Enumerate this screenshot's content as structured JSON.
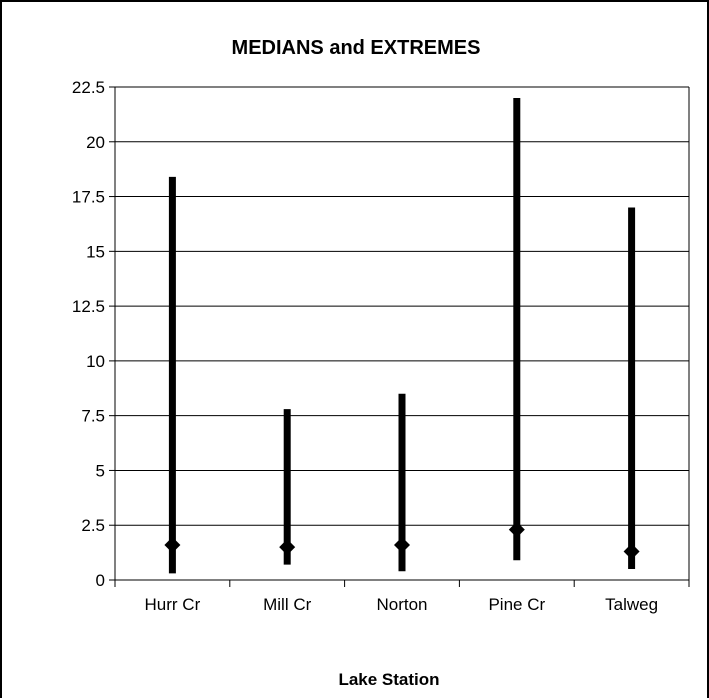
{
  "chart_data": {
    "type": "high-low-median",
    "title": "MEDIANS and EXTREMES",
    "xlabel": "Lake Station",
    "ylabel": "",
    "ylim": [
      0,
      22.5
    ],
    "yticks": [
      "0",
      "2.5",
      "5",
      "7.5",
      "10",
      "12.5",
      "15",
      "17.5",
      "20",
      "22.5"
    ],
    "categories": [
      "Hurr Cr",
      "Mill Cr",
      "Norton",
      "Pine Cr",
      "Talweg"
    ],
    "series": [
      {
        "values": [
          18.4,
          7.8,
          8.5,
          22.0,
          17.0
        ]
      },
      {
        "values": [
          0.3,
          0.7,
          0.4,
          0.9,
          0.5
        ]
      },
      {
        "values": [
          1.6,
          1.5,
          1.6,
          2.3,
          1.3
        ]
      }
    ],
    "grid": true,
    "legend": "none"
  }
}
